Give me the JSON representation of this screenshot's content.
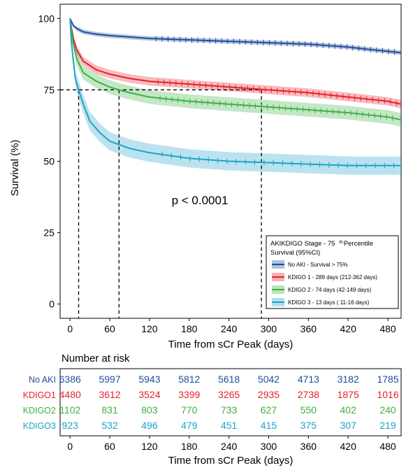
{
  "chart_data": {
    "type": "line",
    "xlabel": "Time from sCr Peak (days)",
    "ylabel": "Survival (%)",
    "xlim": [
      -15,
      500
    ],
    "ylim": [
      -5,
      105
    ],
    "xticks": [
      "0",
      "60",
      "120",
      "180",
      "240",
      "300",
      "360",
      "420",
      "480"
    ],
    "yticks": [
      "0",
      "25",
      "50",
      "75",
      "100"
    ],
    "annotation": "p < 0.0001",
    "reference_line": {
      "y": 75,
      "x": [
        13,
        74,
        289
      ]
    },
    "legend": {
      "title_line1": "AKIKDIGO Stage - 75",
      "title_sup": "th",
      "title_line1b": "Percentile",
      "title_line2": "Survival (95%CI)",
      "placement": "lower-right"
    },
    "series": [
      {
        "name": "No AKI - Survival > 75%",
        "color": "#1f4e9b",
        "x": [
          0,
          2,
          5,
          10,
          20,
          40,
          60,
          90,
          120,
          180,
          240,
          300,
          360,
          420,
          450,
          480,
          500
        ],
        "y": [
          100,
          99,
          97.5,
          96.5,
          95.3,
          94.5,
          94,
          93.5,
          93,
          92.5,
          92,
          91.5,
          91,
          90,
          89.2,
          88.5,
          88
        ],
        "ci": 0.8
      },
      {
        "name": "KDIGO 1 - 289 days (212-362 days)",
        "color": "#e8202a",
        "x": [
          0,
          2,
          5,
          10,
          20,
          40,
          60,
          90,
          120,
          180,
          240,
          300,
          360,
          420,
          480,
          500
        ],
        "y": [
          100,
          97,
          93,
          89,
          85,
          82,
          80.5,
          79,
          78,
          77,
          76,
          75,
          74,
          72.5,
          71,
          70
        ],
        "ci": 1.5
      },
      {
        "name": "KDIGO 2 - 74 days (42-149 days)",
        "color": "#3cb043",
        "x": [
          0,
          2,
          5,
          10,
          20,
          40,
          60,
          74,
          90,
          120,
          180,
          240,
          300,
          360,
          420,
          480,
          500
        ],
        "y": [
          100,
          96,
          91,
          86,
          81,
          78,
          76,
          75,
          74,
          72.5,
          71,
          70,
          69,
          68,
          67,
          65.5,
          64.5
        ],
        "ci": 2.4
      },
      {
        "name": "KDIGO 3 - 13 days (  11-16 days)",
        "color": "#1da2c9",
        "x": [
          0,
          2,
          5,
          8,
          13,
          20,
          30,
          45,
          60,
          90,
          120,
          180,
          240,
          300,
          360,
          420,
          480,
          500
        ],
        "y": [
          100,
          92,
          85,
          79,
          75,
          70,
          64,
          60,
          57,
          54.5,
          53,
          51,
          50,
          49.5,
          49,
          48.5,
          48.5,
          48.5
        ],
        "ci": 3.2
      }
    ]
  },
  "risk_table": {
    "title": "Number at risk",
    "xlabel": "Time from sCr Peak (days)",
    "ticks": [
      "0",
      "60",
      "120",
      "180",
      "240",
      "300",
      "360",
      "420",
      "480"
    ],
    "rows": [
      {
        "label": "No AKI",
        "color": "#1f4e9b",
        "values": [
          "6386",
          "5997",
          "5943",
          "5812",
          "5618",
          "5042",
          "4713",
          "3182",
          "1785"
        ]
      },
      {
        "label": "KDIGO1",
        "color": "#e8202a",
        "values": [
          "4480",
          "3612",
          "3524",
          "3399",
          "3265",
          "2935",
          "2738",
          "1875",
          "1016"
        ]
      },
      {
        "label": "KDIGO2",
        "color": "#3cb043",
        "values": [
          "1102",
          "831",
          "803",
          "770",
          "733",
          "627",
          "550",
          "402",
          "240"
        ]
      },
      {
        "label": "KDIGO3",
        "color": "#1da2c9",
        "values": [
          "923",
          "532",
          "496",
          "479",
          "451",
          "415",
          "375",
          "307",
          "219"
        ]
      }
    ]
  }
}
